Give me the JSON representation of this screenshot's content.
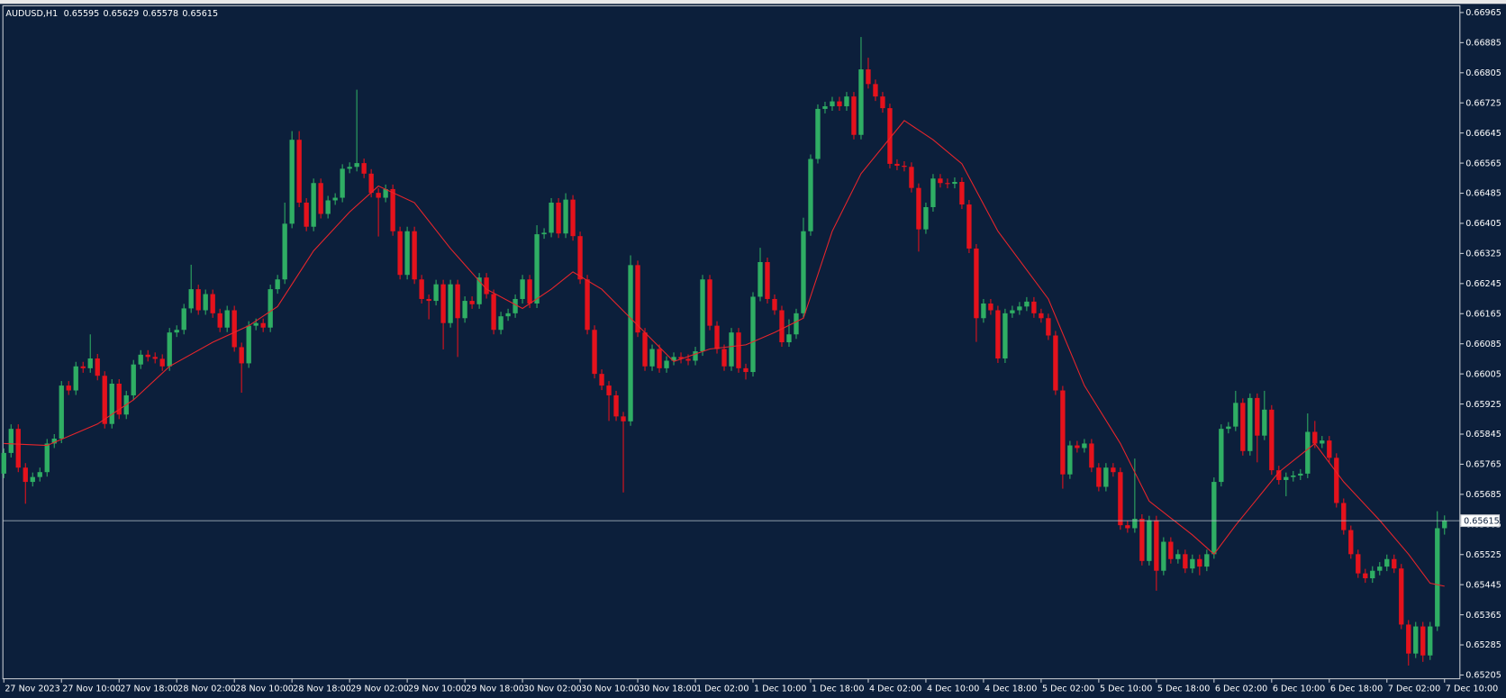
{
  "chart_data": {
    "type": "candlestick",
    "title": "AUDUSD,H1",
    "up_color": "#2fae64",
    "down_color": "#e5121c",
    "price_line_color": "#b8c4cc",
    "categories": [
      "27 Nov 2023",
      null,
      null,
      null,
      null,
      null,
      null,
      null,
      "27 Nov 10:00",
      null,
      null,
      null,
      null,
      null,
      null,
      null,
      "27 Nov 18:00",
      null,
      null,
      null,
      null,
      null,
      null,
      null,
      "28 Nov 02:00",
      null,
      null,
      null,
      null,
      null,
      null,
      null,
      "28 Nov 10:00",
      null,
      null,
      null,
      null,
      null,
      null,
      null,
      "28 Nov 18:00",
      null,
      null,
      null,
      null,
      null,
      null,
      null,
      "29 Nov 02:00",
      null,
      null,
      null,
      null,
      null,
      null,
      null,
      "29 Nov 10:00",
      null,
      null,
      null,
      null,
      null,
      null,
      null,
      "29 Nov 18:00",
      null,
      null,
      null,
      null,
      null,
      null,
      null,
      "30 Nov 02:00",
      null,
      null,
      null,
      null,
      null,
      null,
      null,
      "30 Nov 10:00",
      null,
      null,
      null,
      null,
      null,
      null,
      null,
      "30 Nov 18:00",
      null,
      null,
      null,
      null,
      null,
      null,
      null,
      "1 Dec 02:00",
      null,
      null,
      null,
      null,
      null,
      null,
      null,
      "1 Dec 10:00",
      null,
      null,
      null,
      null,
      null,
      null,
      null,
      "1 Dec 18:00",
      null,
      null,
      null,
      null,
      null,
      null,
      null,
      "4 Dec 02:00",
      null,
      null,
      null,
      null,
      null,
      null,
      null,
      "4 Dec 10:00",
      null,
      null,
      null,
      null,
      null,
      null,
      null,
      "4 Dec 18:00",
      null,
      null,
      null,
      null,
      null,
      null,
      null,
      "5 Dec 02:00",
      null,
      null,
      null,
      null,
      null,
      null,
      null,
      "5 Dec 10:00",
      null,
      null,
      null,
      null,
      null,
      null,
      null,
      "5 Dec 18:00",
      null,
      null,
      null,
      null,
      null,
      null,
      null,
      "6 Dec 02:00",
      null,
      null,
      null,
      null,
      null,
      null,
      null,
      "6 Dec 10:00",
      null,
      null,
      null,
      null,
      null,
      null,
      null,
      "6 Dec 18:00",
      null,
      null,
      null,
      null,
      null,
      null,
      null,
      "7 Dec 02:00",
      null,
      null,
      null,
      null,
      null,
      null,
      null,
      "7 Dec 10:00"
    ],
    "open": [
      0.6574,
      0.65795,
      0.65859,
      0.65756,
      0.65718,
      0.65731,
      0.65744,
      0.6582,
      0.65833,
      0.65974,
      0.65961,
      0.66025,
      0.6602,
      0.66046,
      0.66,
      0.65872,
      0.65979,
      0.65897,
      0.65948,
      0.6603,
      0.66056,
      0.6605,
      0.66045,
      0.66025,
      0.66115,
      0.66122,
      0.66179,
      0.6623,
      0.66174,
      0.66217,
      0.66166,
      0.66128,
      0.66174,
      0.66076,
      0.66033,
      0.66133,
      0.6614,
      0.66128,
      0.6623,
      0.66256,
      0.66404,
      0.66627,
      0.6646,
      0.66396,
      0.66512,
      0.6643,
      0.66466,
      0.66473,
      0.6655,
      0.66555,
      0.66565,
      0.66537,
      0.66486,
      0.66473,
      0.66496,
      0.66384,
      0.66268,
      0.66384,
      0.66256,
      0.66204,
      0.66199,
      0.66243,
      0.6614,
      0.66243,
      0.66153,
      0.66199,
      0.6619,
      0.66261,
      0.66217,
      0.66122,
      0.66158,
      0.66166,
      0.66204,
      0.66256,
      0.66192,
      0.66376,
      0.6638,
      0.6646,
      0.66378,
      0.66468,
      0.66371,
      0.66256,
      0.66122,
      0.66005,
      0.65974,
      0.65948,
      0.65892,
      0.65879,
      0.66294,
      0.66115,
      0.66025,
      0.66071,
      0.6602,
      0.6604,
      0.6605,
      0.66045,
      0.6604,
      0.66065,
      0.66256,
      0.66133,
      0.66071,
      0.66025,
      0.66115,
      0.6602,
      0.6601,
      0.6621,
      0.66302,
      0.66204,
      0.66174,
      0.66089,
      0.6611,
      0.66166,
      0.66384,
      0.66576,
      0.66709,
      0.66716,
      0.66729,
      0.66716,
      0.66742,
      0.6664,
      0.66814,
      0.66775,
      0.66742,
      0.66711,
      0.66563,
      0.66558,
      0.66555,
      0.66499,
      0.66389,
      0.66448,
      0.66524,
      0.66512,
      0.6651,
      0.66515,
      0.66455,
      0.66338,
      0.66153,
      0.66192,
      0.66174,
      0.66046,
      0.66166,
      0.66174,
      0.66184,
      0.66197,
      0.66166,
      0.66153,
      0.66107,
      0.65961,
      0.65738,
      0.65815,
      0.65808,
      0.6582,
      0.65756,
      0.65705,
      0.65756,
      0.65744,
      0.65603,
      0.65595,
      0.6562,
      0.65508,
      0.65616,
      0.65482,
      0.65559,
      0.65513,
      0.65526,
      0.65488,
      0.65513,
      0.65493,
      0.65526,
      0.65718,
      0.65859,
      0.65865,
      0.65928,
      0.658,
      0.65941,
      0.65841,
      0.6591,
      0.65749,
      0.65723,
      0.65731,
      0.65735,
      0.6574,
      0.65851,
      0.6582,
      0.65828,
      0.65782,
      0.65662,
      0.6559,
      0.65526,
      0.65475,
      0.65462,
      0.65482,
      0.65493,
      0.65513,
      0.65488,
      0.65339,
      0.65262,
      0.65334,
      0.65257,
      0.65334,
      0.65595
    ],
    "high": [
      0.65807,
      0.65871,
      0.65871,
      0.65768,
      0.65743,
      0.65756,
      0.65832,
      0.65845,
      0.65986,
      0.65986,
      0.66037,
      0.66037,
      0.6611,
      0.66058,
      0.66012,
      0.65991,
      0.65991,
      0.6596,
      0.66042,
      0.66068,
      0.66068,
      0.66062,
      0.66057,
      0.66127,
      0.66134,
      0.66191,
      0.66295,
      0.66242,
      0.66229,
      0.66229,
      0.66178,
      0.66186,
      0.66186,
      0.66088,
      0.66145,
      0.66152,
      0.66152,
      0.66242,
      0.66268,
      0.6646,
      0.6665,
      0.6665,
      0.66472,
      0.66524,
      0.66524,
      0.66478,
      0.66485,
      0.66562,
      0.66567,
      0.6676,
      0.66577,
      0.66549,
      0.66498,
      0.66508,
      0.66508,
      0.66396,
      0.66396,
      0.66396,
      0.66268,
      0.66216,
      0.66255,
      0.66255,
      0.66255,
      0.66255,
      0.66211,
      0.66211,
      0.66273,
      0.66273,
      0.66229,
      0.6617,
      0.66178,
      0.66216,
      0.66268,
      0.66268,
      0.664,
      0.66392,
      0.66472,
      0.66472,
      0.66485,
      0.6648,
      0.66383,
      0.66268,
      0.66134,
      0.66017,
      0.65986,
      0.6596,
      0.65904,
      0.6632,
      0.66306,
      0.66127,
      0.66083,
      0.66083,
      0.66052,
      0.66062,
      0.66062,
      0.66057,
      0.66077,
      0.66268,
      0.66268,
      0.66145,
      0.66083,
      0.66127,
      0.66127,
      0.66032,
      0.66222,
      0.6634,
      0.66314,
      0.66216,
      0.66186,
      0.6615,
      0.66178,
      0.6642,
      0.66588,
      0.66721,
      0.66728,
      0.66741,
      0.66741,
      0.66754,
      0.66754,
      0.669,
      0.66845,
      0.66787,
      0.66754,
      0.66723,
      0.66575,
      0.6657,
      0.66567,
      0.66511,
      0.6646,
      0.66536,
      0.66536,
      0.66524,
      0.66527,
      0.66527,
      0.66467,
      0.6635,
      0.66204,
      0.66204,
      0.66186,
      0.66178,
      0.66186,
      0.66196,
      0.66209,
      0.66209,
      0.66178,
      0.66165,
      0.66119,
      0.65973,
      0.65827,
      0.65827,
      0.65832,
      0.65832,
      0.65768,
      0.65768,
      0.65768,
      0.65756,
      0.65615,
      0.6578,
      0.65632,
      0.65628,
      0.65628,
      0.65571,
      0.65571,
      0.65538,
      0.65538,
      0.65525,
      0.65525,
      0.65538,
      0.6573,
      0.65871,
      0.65877,
      0.6596,
      0.6594,
      0.65953,
      0.65953,
      0.6596,
      0.65922,
      0.65761,
      0.65743,
      0.65747,
      0.65752,
      0.659,
      0.6588,
      0.6584,
      0.6584,
      0.65794,
      0.65674,
      0.65602,
      0.65538,
      0.65487,
      0.65494,
      0.65505,
      0.65525,
      0.65525,
      0.655,
      0.65351,
      0.65346,
      0.65346,
      0.65346,
      0.6564,
      0.65629
    ],
    "low": [
      0.65728,
      0.65783,
      0.65744,
      0.6566,
      0.65706,
      0.65719,
      0.65732,
      0.65808,
      0.65821,
      0.65949,
      0.65949,
      0.66008,
      0.66008,
      0.65988,
      0.6586,
      0.6586,
      0.65885,
      0.65885,
      0.65936,
      0.66018,
      0.66038,
      0.66033,
      0.66013,
      0.66013,
      0.66103,
      0.6611,
      0.66167,
      0.66162,
      0.66162,
      0.66154,
      0.66116,
      0.66116,
      0.66064,
      0.65955,
      0.66021,
      0.66121,
      0.66116,
      0.66116,
      0.66218,
      0.66244,
      0.66392,
      0.66448,
      0.66384,
      0.66384,
      0.66418,
      0.66418,
      0.66454,
      0.66461,
      0.66538,
      0.66543,
      0.66525,
      0.66474,
      0.6637,
      0.66461,
      0.66372,
      0.66256,
      0.66256,
      0.66244,
      0.66192,
      0.6615,
      0.66187,
      0.6607,
      0.66128,
      0.6605,
      0.66141,
      0.66178,
      0.66178,
      0.66205,
      0.6611,
      0.6611,
      0.66146,
      0.66154,
      0.66192,
      0.6618,
      0.6618,
      0.66364,
      0.66368,
      0.66366,
      0.66366,
      0.66359,
      0.66244,
      0.6611,
      0.65993,
      0.65962,
      0.6588,
      0.6588,
      0.6569,
      0.65867,
      0.66103,
      0.66013,
      0.66013,
      0.66008,
      0.66008,
      0.66028,
      0.66033,
      0.66028,
      0.66028,
      0.66053,
      0.66121,
      0.66059,
      0.66013,
      0.66013,
      0.66008,
      0.6599,
      0.65998,
      0.66198,
      0.66192,
      0.66162,
      0.66077,
      0.66077,
      0.66098,
      0.66154,
      0.66372,
      0.66564,
      0.66697,
      0.66704,
      0.66704,
      0.66704,
      0.66628,
      0.66628,
      0.66763,
      0.6673,
      0.66699,
      0.66551,
      0.66546,
      0.66543,
      0.66487,
      0.6633,
      0.66377,
      0.66436,
      0.665,
      0.66498,
      0.66498,
      0.66443,
      0.66326,
      0.6609,
      0.66141,
      0.66162,
      0.66034,
      0.66034,
      0.66154,
      0.66162,
      0.66172,
      0.66154,
      0.66141,
      0.66095,
      0.65949,
      0.657,
      0.65726,
      0.65796,
      0.65796,
      0.65744,
      0.65693,
      0.65693,
      0.65732,
      0.65591,
      0.65583,
      0.65583,
      0.65496,
      0.65496,
      0.65429,
      0.6547,
      0.65501,
      0.65501,
      0.65476,
      0.65476,
      0.6547,
      0.65481,
      0.65514,
      0.65706,
      0.65847,
      0.65853,
      0.65788,
      0.65788,
      0.6577,
      0.65829,
      0.65737,
      0.65711,
      0.6568,
      0.65719,
      0.65723,
      0.65728,
      0.65808,
      0.65808,
      0.6577,
      0.6565,
      0.65578,
      0.65514,
      0.65463,
      0.6545,
      0.6545,
      0.6547,
      0.65481,
      0.65476,
      0.65327,
      0.6523,
      0.6525,
      0.6524,
      0.65245,
      0.65322,
      0.65578
    ],
    "close": [
      0.65795,
      0.65859,
      0.65756,
      0.65718,
      0.65731,
      0.65744,
      0.6582,
      0.65833,
      0.65974,
      0.65961,
      0.66025,
      0.6602,
      0.66046,
      0.66,
      0.65872,
      0.65979,
      0.65897,
      0.65948,
      0.6603,
      0.66056,
      0.6605,
      0.66045,
      0.66025,
      0.66115,
      0.66122,
      0.66179,
      0.6623,
      0.66174,
      0.66217,
      0.66166,
      0.66128,
      0.66174,
      0.66076,
      0.66033,
      0.66133,
      0.6614,
      0.66128,
      0.6623,
      0.66256,
      0.66404,
      0.66627,
      0.6646,
      0.66396,
      0.66512,
      0.6643,
      0.66466,
      0.66473,
      0.6655,
      0.66555,
      0.66565,
      0.66537,
      0.66486,
      0.66473,
      0.66496,
      0.66384,
      0.66268,
      0.66384,
      0.66256,
      0.66204,
      0.66199,
      0.66243,
      0.6614,
      0.66243,
      0.66153,
      0.66199,
      0.6619,
      0.66261,
      0.66217,
      0.66122,
      0.66158,
      0.66166,
      0.66204,
      0.66256,
      0.66192,
      0.66376,
      0.6638,
      0.6646,
      0.66378,
      0.66468,
      0.66371,
      0.66256,
      0.66122,
      0.66005,
      0.65974,
      0.65948,
      0.65892,
      0.65879,
      0.66294,
      0.66115,
      0.66025,
      0.66071,
      0.6602,
      0.6604,
      0.6605,
      0.66045,
      0.6604,
      0.66065,
      0.66256,
      0.66133,
      0.66071,
      0.66025,
      0.66115,
      0.6602,
      0.6601,
      0.6621,
      0.66302,
      0.66204,
      0.66174,
      0.66089,
      0.6611,
      0.66166,
      0.66384,
      0.66576,
      0.66709,
      0.66716,
      0.66729,
      0.66716,
      0.66742,
      0.6664,
      0.66814,
      0.66775,
      0.66742,
      0.66711,
      0.66563,
      0.66558,
      0.66555,
      0.66499,
      0.66389,
      0.66448,
      0.66524,
      0.66512,
      0.6651,
      0.66515,
      0.66455,
      0.66338,
      0.66153,
      0.66192,
      0.66174,
      0.66046,
      0.66166,
      0.66174,
      0.66184,
      0.66197,
      0.66166,
      0.66153,
      0.66107,
      0.65961,
      0.65738,
      0.65815,
      0.65808,
      0.6582,
      0.65756,
      0.65705,
      0.65756,
      0.65744,
      0.65603,
      0.65595,
      0.6562,
      0.65508,
      0.65616,
      0.65482,
      0.65559,
      0.65513,
      0.65526,
      0.65488,
      0.65513,
      0.65493,
      0.65526,
      0.65718,
      0.65859,
      0.65865,
      0.65928,
      0.658,
      0.65941,
      0.65841,
      0.6591,
      0.65749,
      0.65723,
      0.65731,
      0.65735,
      0.6574,
      0.65851,
      0.6582,
      0.65828,
      0.65782,
      0.65662,
      0.6559,
      0.65526,
      0.65475,
      0.65462,
      0.65482,
      0.65493,
      0.65513,
      0.65488,
      0.65339,
      0.65262,
      0.65334,
      0.65257,
      0.65334,
      0.65595,
      0.65615
    ],
    "moving_average": {
      "color": "#e8252b",
      "x": [
        0,
        6,
        13,
        18,
        23,
        29,
        34,
        38,
        43,
        48,
        52,
        57,
        62,
        67,
        72,
        76,
        79,
        83,
        87,
        93,
        98,
        103,
        107,
        111,
        115,
        119,
        125,
        129,
        133,
        138,
        145,
        150,
        155,
        159,
        165,
        168,
        171,
        177,
        182,
        186,
        191,
        195,
        198,
        200
      ],
      "values": [
        0.6582,
        0.65815,
        0.65872,
        0.65936,
        0.66025,
        0.66089,
        0.66133,
        0.66184,
        0.66332,
        0.66435,
        0.66504,
        0.6646,
        0.66338,
        0.6623,
        0.66179,
        0.6623,
        0.66276,
        0.6623,
        0.66153,
        0.66038,
        0.66071,
        0.66082,
        0.66115,
        0.66153,
        0.66384,
        0.66537,
        0.66678,
        0.66627,
        0.66563,
        0.66384,
        0.66204,
        0.65974,
        0.6582,
        0.65667,
        0.65577,
        0.65526,
        0.65603,
        0.65744,
        0.6582,
        0.65718,
        0.65616,
        0.65526,
        0.65449,
        0.65441
      ]
    },
    "ylim": [
      0.65195,
      0.66983
    ],
    "yticks": [
      0.65205,
      0.65285,
      0.65365,
      0.65445,
      0.65525,
      0.65605,
      0.65685,
      0.65765,
      0.65845,
      0.65925,
      0.66005,
      0.66085,
      0.66165,
      0.66245,
      0.66325,
      0.66405,
      0.66485,
      0.66565,
      0.66645,
      0.66725,
      0.66805,
      0.66885,
      0.66965
    ]
  }
}
